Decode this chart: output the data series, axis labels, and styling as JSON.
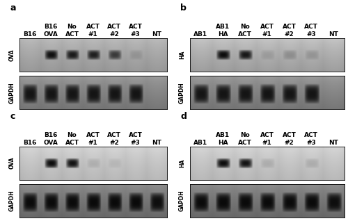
{
  "panels": [
    {
      "label": "a",
      "col_labels": [
        "B16",
        "B16\nOVA",
        "No\nACT",
        "ACT\n#1",
        "ACT\n#2",
        "ACT\n#3",
        "NT"
      ],
      "gene_label": "OVA",
      "ref_label": "GAPDH",
      "gene_bands": [
        0.0,
        0.95,
        0.88,
        0.85,
        0.68,
        0.13,
        0.0
      ],
      "gapdh_bands": [
        0.88,
        0.88,
        0.88,
        0.88,
        0.88,
        0.88,
        0.0
      ],
      "gene_bg_light": 0.72,
      "gene_bg_dark": 0.58,
      "gapdh_bg_light": 0.6,
      "gapdh_bg_dark": 0.45
    },
    {
      "label": "b",
      "col_labels": [
        "AB1",
        "AB1\nHA",
        "No\nACT",
        "ACT\n#1",
        "ACT\n#2",
        "ACT\n#3",
        "NT"
      ],
      "gene_label": "HA",
      "ref_label": "GAPDH",
      "gene_bands": [
        0.0,
        0.97,
        0.9,
        0.12,
        0.2,
        0.16,
        0.0
      ],
      "gapdh_bands": [
        0.88,
        0.88,
        0.88,
        0.88,
        0.88,
        0.88,
        0.0
      ],
      "gene_bg_light": 0.76,
      "gene_bg_dark": 0.6,
      "gapdh_bg_light": 0.6,
      "gapdh_bg_dark": 0.45
    },
    {
      "label": "c",
      "col_labels": [
        "B16",
        "B16\nOVA",
        "No\nACT",
        "ACT\n#1",
        "ACT\n#2",
        "ACT\n#3",
        "NT"
      ],
      "gene_label": "OVA",
      "ref_label": "GAPDH",
      "gene_bands": [
        0.0,
        0.97,
        0.94,
        0.12,
        0.08,
        0.0,
        0.0
      ],
      "gapdh_bands": [
        0.95,
        0.95,
        0.95,
        0.95,
        0.95,
        0.95,
        0.92
      ],
      "gene_bg_light": 0.82,
      "gene_bg_dark": 0.7,
      "gapdh_bg_light": 0.55,
      "gapdh_bg_dark": 0.4
    },
    {
      "label": "d",
      "col_labels": [
        "AB1",
        "AB1\nHA",
        "No\nACT",
        "ACT\n#1",
        "ACT\n#2",
        "ACT\n#3",
        "NT"
      ],
      "gene_label": "HA",
      "ref_label": "GAPDH",
      "gene_bands": [
        0.0,
        0.97,
        0.94,
        0.13,
        0.0,
        0.13,
        0.0
      ],
      "gapdh_bands": [
        0.95,
        0.95,
        0.95,
        0.95,
        0.95,
        0.95,
        0.92
      ],
      "gene_bg_light": 0.82,
      "gene_bg_dark": 0.7,
      "gapdh_bg_light": 0.55,
      "gapdh_bg_dark": 0.4
    }
  ],
  "bg_color": "#ffffff",
  "label_fontsize": 6.5,
  "panel_letter_fontsize": 9,
  "row_label_fontsize": 5.5
}
